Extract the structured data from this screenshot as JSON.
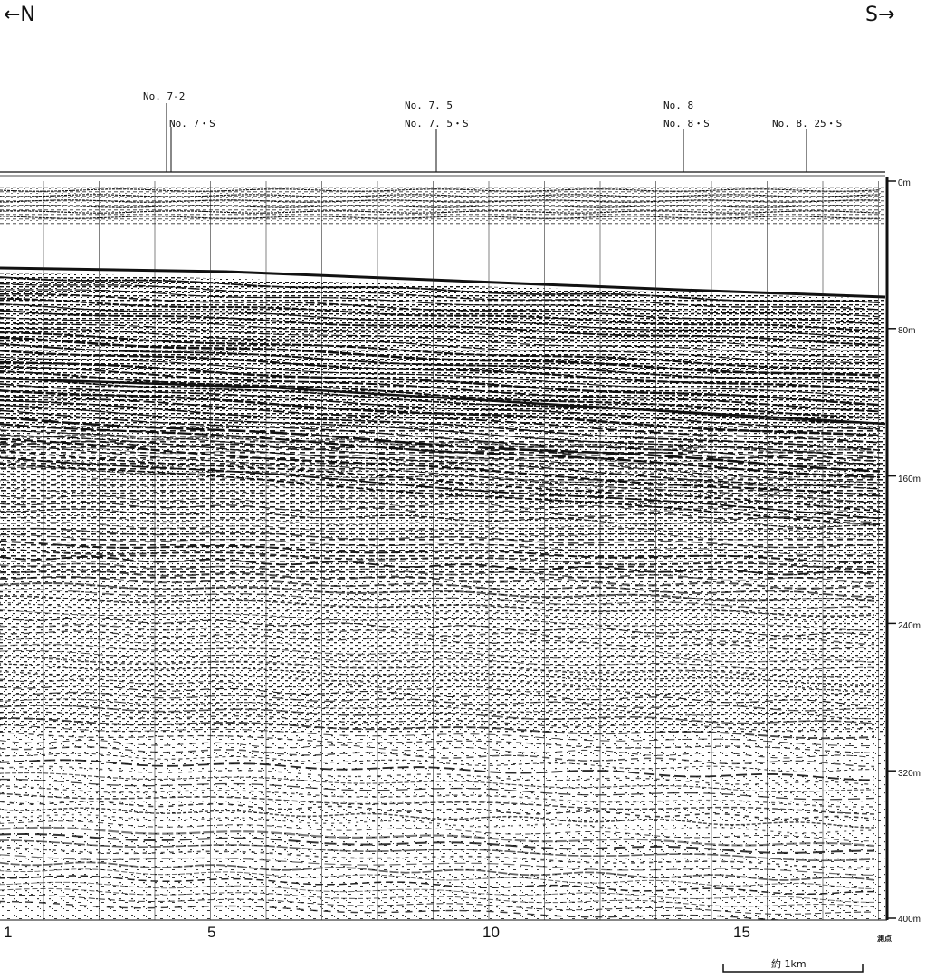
{
  "direction": {
    "left": "←N",
    "right": "S→"
  },
  "stations": [
    {
      "id": "No. 7-2"
    },
    {
      "id": "No. 7・S"
    },
    {
      "id": "No. 7. 5"
    },
    {
      "id": "No. 7. 5・S"
    },
    {
      "id": "No. 8"
    },
    {
      "id": "No. 8・S"
    },
    {
      "id": "No. 8. 25・S"
    }
  ],
  "depth_axis": {
    "ticks": [
      "0m",
      "80m",
      "160m",
      "240m",
      "320m",
      "400m"
    ],
    "values": [
      0,
      80,
      160,
      240,
      320,
      400
    ],
    "unit": "m"
  },
  "shot_points": {
    "labels": [
      "1",
      "5",
      "10",
      "15"
    ],
    "values": [
      1,
      5,
      10,
      15
    ],
    "axis_label": "測点"
  },
  "scale_bar": {
    "label": "約 1km"
  },
  "colors": {
    "ink": "#111111",
    "paper": "#ffffff"
  }
}
